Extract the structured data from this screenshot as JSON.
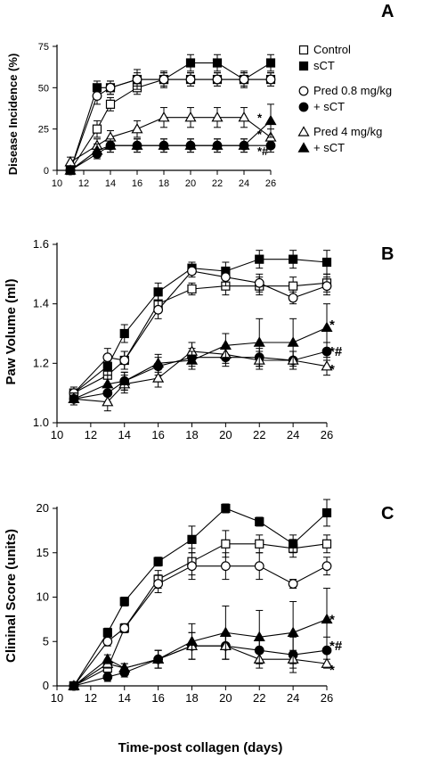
{
  "figure": {
    "xlabel": "Time-post collagen (days)"
  },
  "legend": [
    {
      "label": "Control",
      "marker": "square-open"
    },
    {
      "label": "sCT",
      "marker": "square-filled"
    },
    {
      "label": "Pred 0.8 mg/kg",
      "marker": "circle-open"
    },
    {
      "label": "+ sCT",
      "marker": "circle-filled"
    },
    {
      "label": "Pred 4 mg/kg",
      "marker": "triangle-open"
    },
    {
      "label": "+ sCT",
      "marker": "triangle-filled"
    }
  ],
  "chart_data": [
    {
      "type": "line",
      "panel": "A",
      "ylabel": "Disease Incidence (%)",
      "xlim": [
        10,
        26
      ],
      "ylim": [
        0,
        75
      ],
      "xticks": [
        10,
        12,
        14,
        16,
        18,
        20,
        22,
        24,
        26
      ],
      "yticks": [
        0,
        25,
        50,
        75
      ],
      "grid": false,
      "legend_position": "right",
      "series": [
        {
          "name": "Control",
          "marker": "square-open",
          "x": [
            11,
            13,
            14,
            16,
            18,
            20,
            22,
            24,
            26
          ],
          "y": [
            0,
            25,
            40,
            50,
            55,
            55,
            55,
            55,
            55
          ],
          "err": [
            0,
            5,
            4,
            4,
            4,
            4,
            4,
            4,
            4
          ]
        },
        {
          "name": "sCT",
          "marker": "square-filled",
          "x": [
            11,
            13,
            14,
            16,
            18,
            20,
            22,
            24,
            26
          ],
          "y": [
            0,
            50,
            50,
            55,
            55,
            65,
            65,
            55,
            65
          ],
          "err": [
            0,
            4,
            4,
            6,
            5,
            5,
            5,
            5,
            5
          ]
        },
        {
          "name": "Pred 0.8 mg/kg",
          "marker": "circle-open",
          "x": [
            11,
            13,
            14,
            16,
            18,
            20,
            22,
            24,
            26
          ],
          "y": [
            0,
            45,
            50,
            55,
            55,
            55,
            55,
            55,
            55
          ],
          "err": [
            0,
            5,
            4,
            4,
            4,
            4,
            4,
            4,
            4
          ]
        },
        {
          "name": "+ sCT",
          "marker": "circle-filled",
          "x": [
            11,
            13,
            14,
            16,
            18,
            20,
            22,
            24,
            26
          ],
          "y": [
            0,
            10,
            15,
            15,
            15,
            15,
            15,
            15,
            15
          ],
          "err": [
            0,
            3,
            4,
            4,
            4,
            4,
            4,
            4,
            4
          ]
        },
        {
          "name": "Pred 4 mg/kg",
          "marker": "triangle-open",
          "x": [
            11,
            13,
            14,
            16,
            18,
            20,
            22,
            24,
            26
          ],
          "y": [
            5,
            15,
            20,
            25,
            32,
            32,
            32,
            32,
            20
          ],
          "err": [
            3,
            4,
            4,
            5,
            6,
            6,
            6,
            6,
            5
          ]
        },
        {
          "name": "+ sCT",
          "marker": "triangle-filled",
          "x": [
            11,
            13,
            14,
            16,
            18,
            20,
            22,
            24,
            26
          ],
          "y": [
            0,
            12,
            15,
            15,
            15,
            15,
            15,
            15,
            30
          ],
          "err": [
            0,
            4,
            4,
            4,
            4,
            4,
            4,
            4,
            10
          ]
        }
      ],
      "annotations": [
        {
          "text": "*",
          "y": 32
        },
        {
          "text": "*",
          "y": 22
        },
        {
          "text": "*#",
          "y": 12
        }
      ]
    },
    {
      "type": "line",
      "panel": "B",
      "ylabel": "Paw Volume (ml)",
      "xlim": [
        10,
        26
      ],
      "ylim": [
        1.0,
        1.6
      ],
      "xticks": [
        10,
        12,
        14,
        16,
        18,
        20,
        22,
        24,
        26
      ],
      "yticks": [
        "1.0",
        "1.2",
        "1.4",
        "1.6"
      ],
      "grid": false,
      "series": [
        {
          "name": "Control",
          "marker": "square-open",
          "x": [
            11,
            13,
            14,
            16,
            18,
            20,
            22,
            24,
            26
          ],
          "y": [
            1.1,
            1.16,
            1.21,
            1.4,
            1.45,
            1.46,
            1.46,
            1.46,
            1.47
          ],
          "err": [
            0.02,
            0.03,
            0.03,
            0.03,
            0.02,
            0.03,
            0.03,
            0.03,
            0.03
          ]
        },
        {
          "name": "sCT",
          "marker": "square-filled",
          "x": [
            11,
            13,
            14,
            16,
            18,
            20,
            22,
            24,
            26
          ],
          "y": [
            1.1,
            1.19,
            1.3,
            1.44,
            1.52,
            1.51,
            1.55,
            1.55,
            1.54
          ],
          "err": [
            0.02,
            0.03,
            0.03,
            0.03,
            0.02,
            0.03,
            0.03,
            0.03,
            0.04
          ]
        },
        {
          "name": "Pred 0.8 mg/kg",
          "marker": "circle-open",
          "x": [
            11,
            13,
            14,
            16,
            18,
            20,
            22,
            24,
            26
          ],
          "y": [
            1.1,
            1.22,
            1.21,
            1.38,
            1.51,
            1.49,
            1.47,
            1.42,
            1.46
          ],
          "err": [
            0.02,
            0.03,
            0.03,
            0.03,
            0.02,
            0.03,
            0.03,
            0.02,
            0.03
          ]
        },
        {
          "name": "+ sCT",
          "marker": "circle-filled",
          "x": [
            11,
            13,
            14,
            16,
            18,
            20,
            22,
            24,
            26
          ],
          "y": [
            1.08,
            1.1,
            1.14,
            1.19,
            1.22,
            1.22,
            1.22,
            1.21,
            1.24
          ],
          "err": [
            0.02,
            0.03,
            0.03,
            0.03,
            0.03,
            0.03,
            0.03,
            0.03,
            0.03
          ]
        },
        {
          "name": "Pred 4 mg/kg",
          "marker": "triangle-open",
          "x": [
            11,
            13,
            14,
            16,
            18,
            20,
            22,
            24,
            26
          ],
          "y": [
            1.08,
            1.07,
            1.13,
            1.15,
            1.24,
            1.23,
            1.21,
            1.21,
            1.19
          ],
          "err": [
            0.02,
            0.03,
            0.03,
            0.03,
            0.03,
            0.03,
            0.03,
            0.03,
            0.03
          ]
        },
        {
          "name": "+ sCT",
          "marker": "triangle-filled",
          "x": [
            11,
            13,
            14,
            16,
            18,
            20,
            22,
            24,
            26
          ],
          "y": [
            1.08,
            1.13,
            1.14,
            1.2,
            1.21,
            1.26,
            1.27,
            1.27,
            1.32
          ],
          "err": [
            0.02,
            0.03,
            0.03,
            0.03,
            0.03,
            0.04,
            0.08,
            0.08,
            0.08
          ]
        }
      ],
      "annotations": [
        {
          "text": "*",
          "y": 1.33
        },
        {
          "text": "*#",
          "y": 1.24
        },
        {
          "text": "*",
          "y": 1.18
        }
      ]
    },
    {
      "type": "line",
      "panel": "C",
      "ylabel": "Clininal Score (units)",
      "xlim": [
        10,
        26
      ],
      "ylim": [
        0,
        20
      ],
      "xticks": [
        10,
        12,
        14,
        16,
        18,
        20,
        22,
        24,
        26
      ],
      "yticks": [
        0,
        5,
        10,
        15,
        20
      ],
      "grid": false,
      "series": [
        {
          "name": "Control",
          "marker": "square-open",
          "x": [
            11,
            13,
            14,
            16,
            18,
            20,
            22,
            24,
            26
          ],
          "y": [
            0,
            2,
            6.5,
            12,
            14,
            16,
            16,
            15.5,
            16
          ],
          "err": [
            0,
            0.5,
            0.5,
            1,
            1.5,
            1.5,
            1,
            1,
            1
          ]
        },
        {
          "name": "sCT",
          "marker": "square-filled",
          "x": [
            11,
            13,
            14,
            16,
            18,
            20,
            22,
            24,
            26
          ],
          "y": [
            0,
            6,
            9.5,
            14,
            16.5,
            20,
            18.5,
            16,
            19.5
          ],
          "err": [
            0,
            0.5,
            0.5,
            0.5,
            1.5,
            0.5,
            0.5,
            1,
            1.5
          ]
        },
        {
          "name": "Pred 0.8 mg/kg",
          "marker": "circle-open",
          "x": [
            11,
            13,
            14,
            16,
            18,
            20,
            22,
            24,
            26
          ],
          "y": [
            0,
            5,
            6.5,
            11.5,
            13.5,
            13.5,
            13.5,
            11.5,
            13.5
          ],
          "err": [
            0,
            0.5,
            0.5,
            1,
            1.5,
            1.5,
            1.5,
            0.5,
            1
          ]
        },
        {
          "name": "+ sCT",
          "marker": "circle-filled",
          "x": [
            11,
            13,
            14,
            16,
            18,
            20,
            22,
            24,
            26
          ],
          "y": [
            0,
            1,
            1.5,
            3,
            4.5,
            4.5,
            4,
            3.5,
            4
          ],
          "err": [
            0,
            0.5,
            0.5,
            1,
            1.5,
            1.5,
            1.5,
            2,
            1.5
          ]
        },
        {
          "name": "Pred 4 mg/kg",
          "marker": "triangle-open",
          "x": [
            11,
            13,
            14,
            16,
            18,
            20,
            22,
            24,
            26
          ],
          "y": [
            0,
            2.5,
            2,
            3,
            4.5,
            4.5,
            3,
            3,
            2.5
          ],
          "err": [
            0,
            0.5,
            0.5,
            1,
            1.5,
            1.5,
            1,
            1,
            0.5
          ]
        },
        {
          "name": "+ sCT",
          "marker": "triangle-filled",
          "x": [
            11,
            13,
            14,
            16,
            18,
            20,
            22,
            24,
            26
          ],
          "y": [
            0,
            3,
            2,
            3,
            5,
            6,
            5.5,
            6,
            7.5
          ],
          "err": [
            0,
            0.5,
            0.5,
            1,
            2,
            3,
            3,
            3.5,
            3.5
          ]
        }
      ],
      "annotations": [
        {
          "text": "*",
          "y": 7.5
        },
        {
          "text": "*#",
          "y": 4.5
        },
        {
          "text": "*",
          "y": 1.8
        }
      ]
    }
  ]
}
